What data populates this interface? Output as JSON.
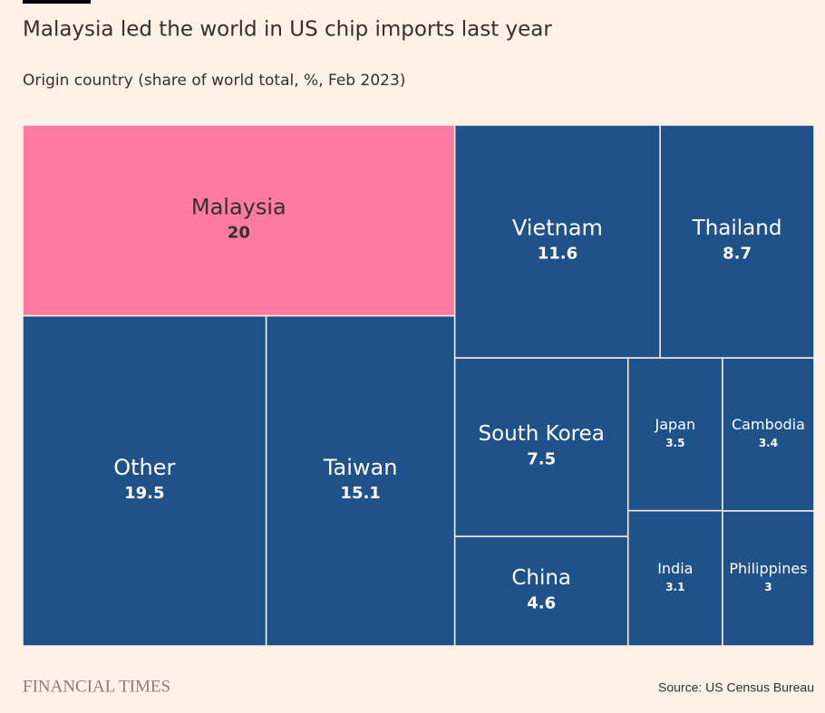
{
  "chart_data": {
    "type": "treemap",
    "title": "Malaysia led the world in US chip imports last year",
    "subtitle": "Origin country (share of world total, %, Feb 2023)",
    "categories": [
      "Malaysia",
      "Other",
      "Taiwan",
      "Vietnam",
      "Thailand",
      "South Korea",
      "China",
      "Japan",
      "India",
      "Cambodia",
      "Philippines"
    ],
    "values": [
      20,
      19.5,
      15.1,
      11.6,
      8.7,
      7.5,
      4.6,
      3.5,
      3.1,
      3.4,
      3
    ],
    "colors": [
      "#ff7a9f",
      "#1f5289",
      "#1f5289",
      "#1f5289",
      "#1f5289",
      "#1f5289",
      "#1f5289",
      "#1f5289",
      "#1f5289",
      "#1f5289",
      "#1f5289"
    ],
    "brand": "FINANCIAL TIMES",
    "source": "Source: US Census Bureau"
  }
}
